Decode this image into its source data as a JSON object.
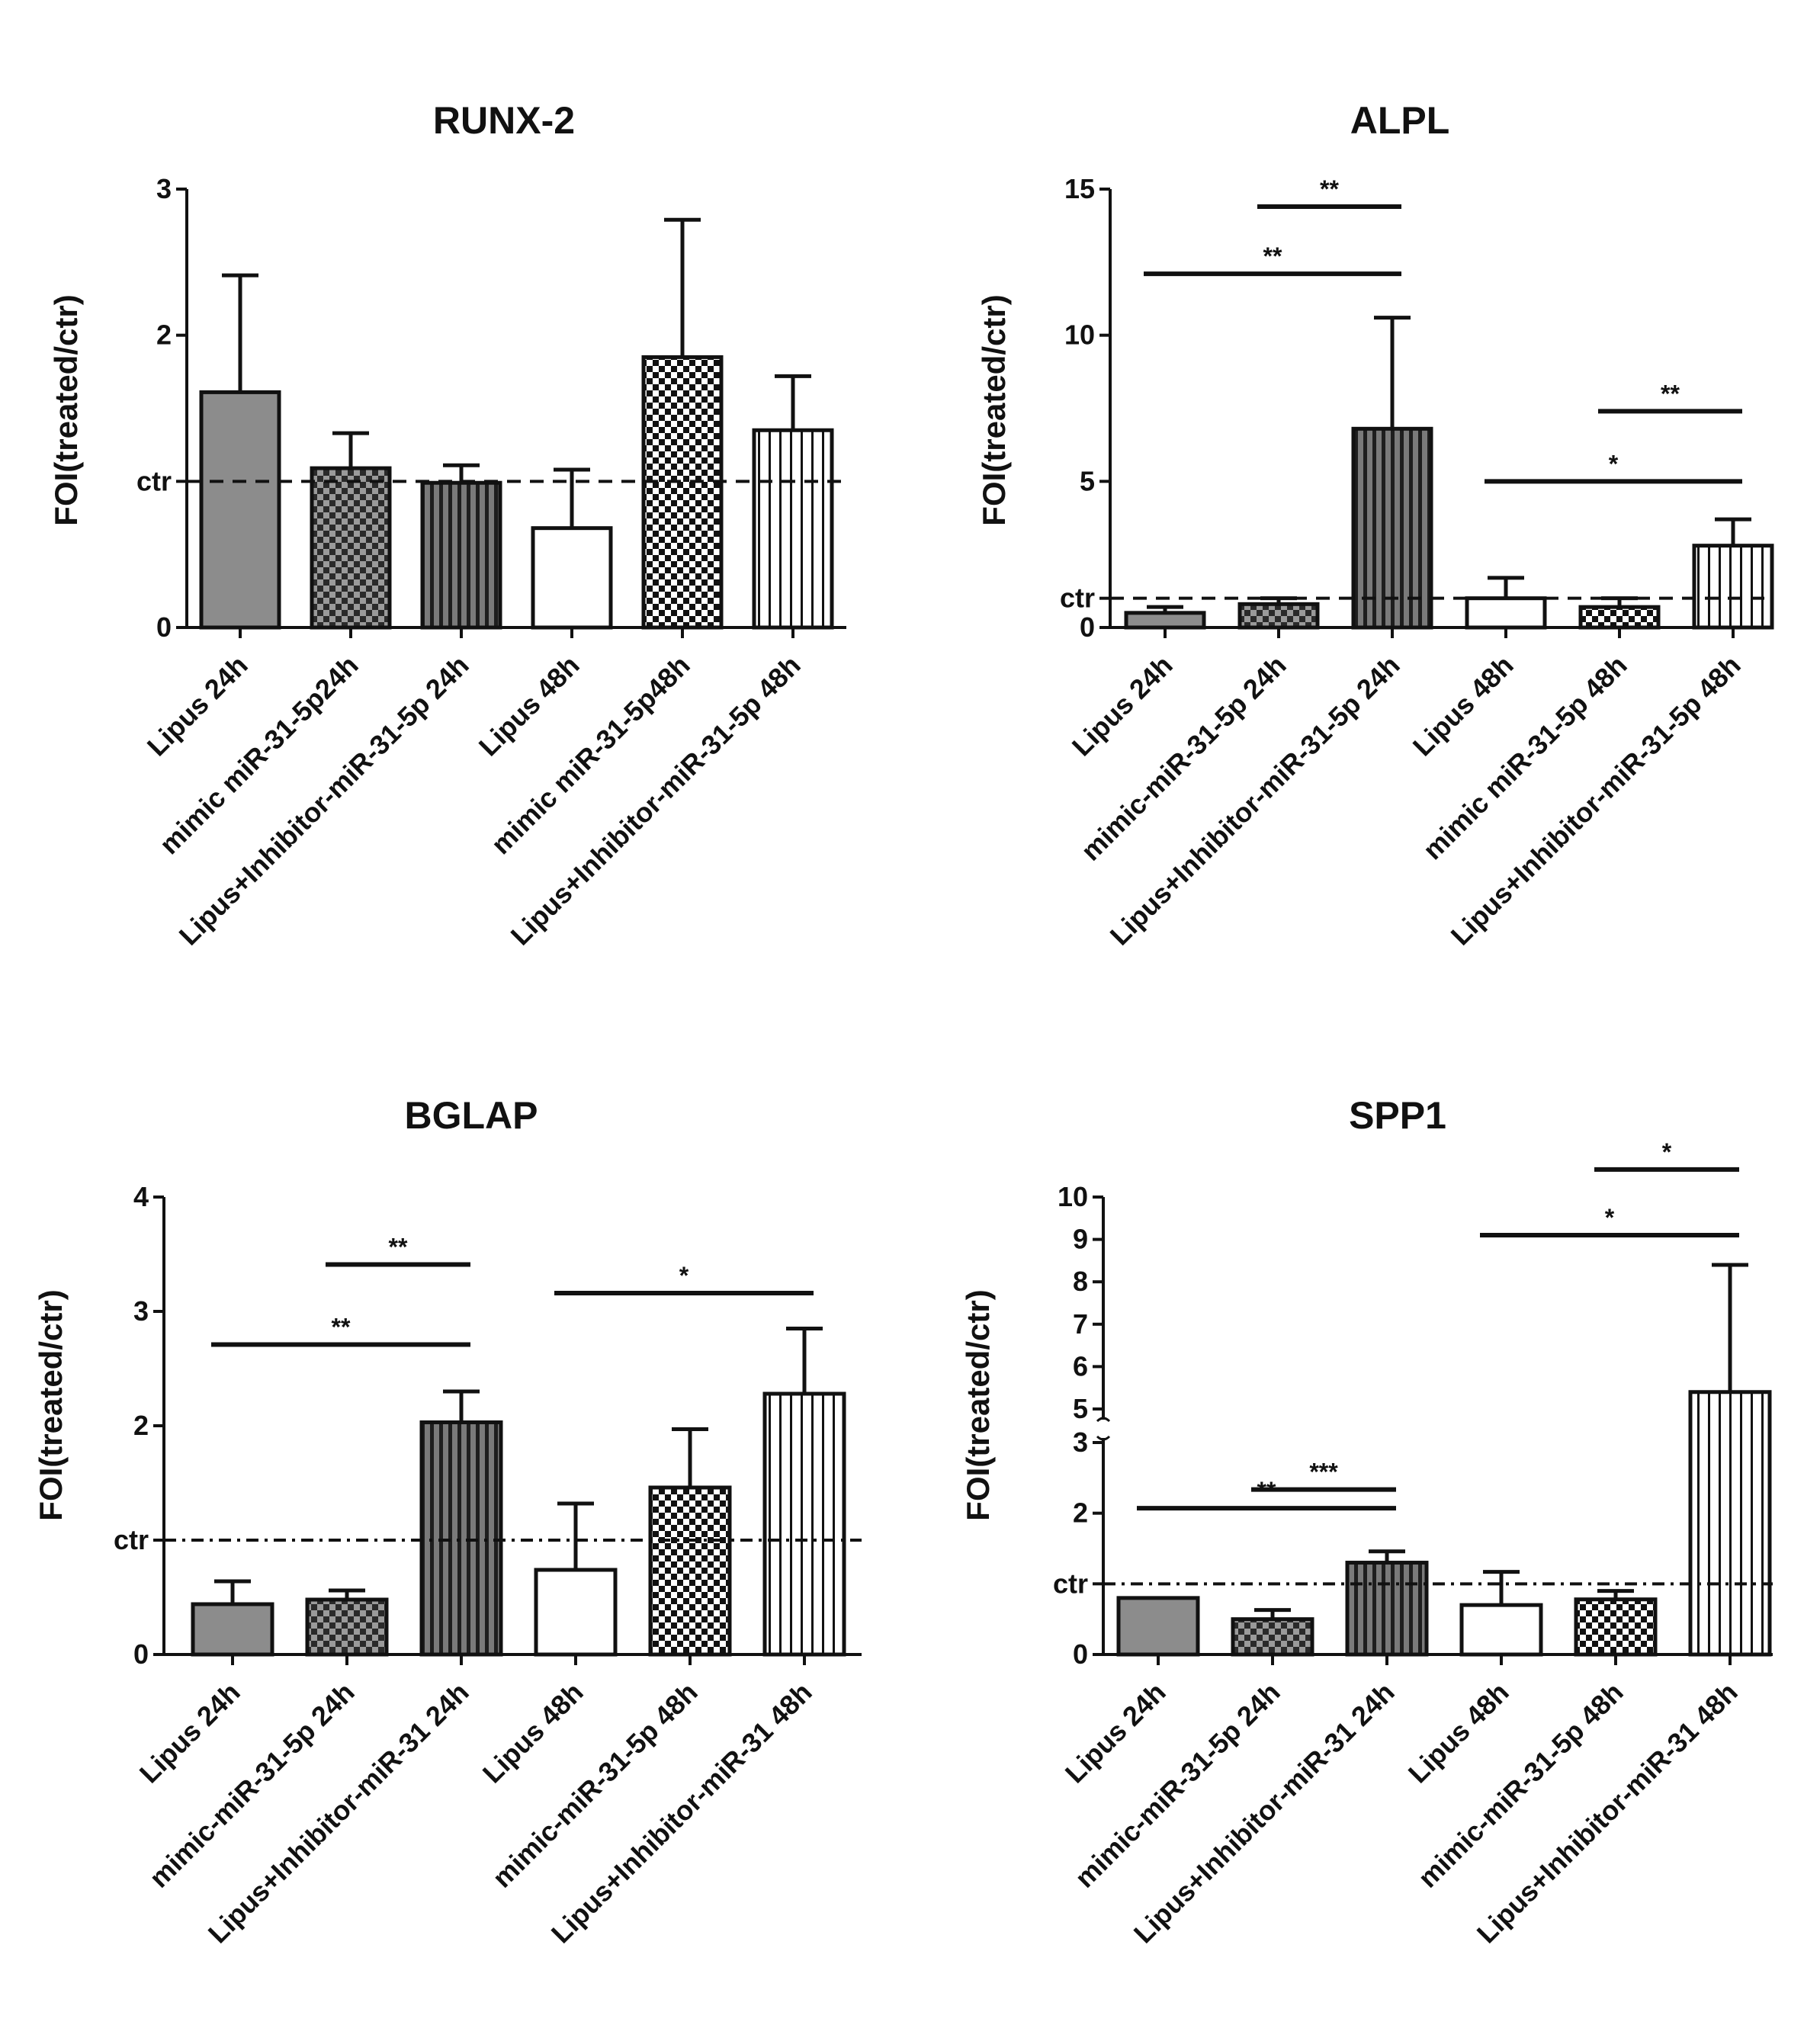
{
  "chart_data": [
    {
      "type": "bar",
      "title": "RUNX-2",
      "ylabel": "FOI(treated/ctr)",
      "ylim": [
        0,
        3
      ],
      "yticks": [
        {
          "value": 0,
          "label": "0"
        },
        {
          "value": 1,
          "label": "ctr"
        },
        {
          "value": 2,
          "label": "2"
        },
        {
          "value": 3,
          "label": "3"
        }
      ],
      "control_line": 1,
      "categories": [
        "Lipus 24h",
        "mimic miR-31-5p24h",
        "Lipus+Inhibitor-miR-31-5p 24h",
        "Lipus 48h",
        "mimic miR-31-5p48h",
        "Lipus+Inhibitor-miR-31-5p 48h"
      ],
      "values": [
        1.61,
        1.09,
        0.99,
        0.68,
        1.85,
        1.35
      ],
      "errors": [
        0.8,
        0.24,
        0.12,
        0.4,
        0.94,
        0.37
      ],
      "patterns": [
        "gray",
        "check",
        "vstripe",
        "white",
        "checkfine",
        "vlines"
      ],
      "significance": []
    },
    {
      "type": "bar",
      "title": "ALPL",
      "ylabel": "FOI(treated/ctr)",
      "ylim": [
        0,
        15
      ],
      "yticks": [
        {
          "value": 0,
          "label": "0"
        },
        {
          "value": 1,
          "label": "ctr"
        },
        {
          "value": 5,
          "label": "5"
        },
        {
          "value": 10,
          "label": "10"
        },
        {
          "value": 15,
          "label": "15"
        }
      ],
      "control_line": 1,
      "categories": [
        "Lipus 24h",
        "mimic-miR-31-5p 24h",
        "Lipus+Inhibitor-miR-31-5p 24h",
        "Lipus 48h",
        "mimic miR-31-5p 48h",
        "Lipus+Inhibitor-miR-31-5p 48h"
      ],
      "values": [
        0.5,
        0.8,
        6.8,
        1.0,
        0.7,
        2.8
      ],
      "errors": [
        0.2,
        0.2,
        3.8,
        0.7,
        0.3,
        0.9
      ],
      "patterns": [
        "gray",
        "check",
        "vstripe",
        "white",
        "checkfine",
        "vlines"
      ],
      "significance": [
        {
          "from": 0,
          "to": 2,
          "y": 12.1,
          "label": "**"
        },
        {
          "from": 1,
          "to": 2,
          "y": 14.4,
          "label": "**"
        },
        {
          "from": 3,
          "to": 5,
          "y": 5.0,
          "label": "*"
        },
        {
          "from": 4,
          "to": 5,
          "y": 7.4,
          "label": "**"
        }
      ]
    },
    {
      "type": "bar",
      "title": "BGLAP",
      "ylabel": "FOI(treated/ctr)",
      "ylim": [
        0,
        4
      ],
      "yticks": [
        {
          "value": 0,
          "label": "0"
        },
        {
          "value": 1,
          "label": "ctr"
        },
        {
          "value": 2,
          "label": "2"
        },
        {
          "value": 3,
          "label": "3"
        },
        {
          "value": 4,
          "label": "4"
        }
      ],
      "control_line": 1,
      "categories": [
        "Lipus 24h",
        "mimic-miR-31-5p 24h",
        "Lipus+Inhibitor-miR-31 24h",
        "Lipus 48h",
        "mimic-miR-31-5p 48h",
        "Lipus+Inhibitor-miR-31 48h"
      ],
      "values": [
        0.44,
        0.48,
        2.03,
        0.74,
        1.46,
        2.28
      ],
      "errors": [
        0.2,
        0.08,
        0.27,
        0.58,
        0.51,
        0.57
      ],
      "patterns": [
        "gray",
        "check",
        "vstripe",
        "white",
        "checkfine",
        "vlines"
      ],
      "significance": [
        {
          "from": 0,
          "to": 2,
          "y": 2.71,
          "label": "**"
        },
        {
          "from": 1,
          "to": 2,
          "y": 3.41,
          "label": "**"
        },
        {
          "from": 3,
          "to": 5,
          "y": 3.16,
          "label": "*"
        }
      ]
    },
    {
      "type": "bar",
      "title": "SPP1",
      "ylabel": "FOI(treated/ctr)",
      "ylim": [
        0,
        10
      ],
      "axis_break": {
        "lower": [
          0,
          3
        ],
        "upper": [
          5,
          10
        ]
      },
      "yticks": [
        {
          "value": 0,
          "label": "0"
        },
        {
          "value": 1,
          "label": "ctr"
        },
        {
          "value": 2,
          "label": "2"
        },
        {
          "value": 3,
          "label": "3"
        },
        {
          "value": 5,
          "label": "5"
        },
        {
          "value": 6,
          "label": "6"
        },
        {
          "value": 7,
          "label": "7"
        },
        {
          "value": 8,
          "label": "8"
        },
        {
          "value": 9,
          "label": "9"
        },
        {
          "value": 10,
          "label": "10"
        }
      ],
      "control_line": 1,
      "categories": [
        "Lipus 24h",
        "mimic-miR-31-5p 24h",
        "Lipus+Inhibitor-miR-31 24h",
        "Lipus 48h",
        "mimic-miR-31-5p 48h",
        "Lipus+Inhibitor-miR-31 48h"
      ],
      "values": [
        0.8,
        0.5,
        1.3,
        0.7,
        0.78,
        5.4
      ],
      "errors": [
        0.0,
        0.13,
        0.16,
        0.47,
        0.12,
        3.0
      ],
      "patterns": [
        "gray",
        "check",
        "vstripe",
        "white",
        "checkfine",
        "vlines"
      ],
      "significance": [
        {
          "from": 0,
          "to": 2,
          "y": 2.07,
          "label": "**"
        },
        {
          "from": 1,
          "to": 2,
          "y": 3.1,
          "label": "***"
        },
        {
          "from": 3,
          "to": 5,
          "y": 9.1,
          "label": "*"
        },
        {
          "from": 4,
          "to": 5,
          "y": 10.65,
          "label": "*"
        }
      ]
    }
  ]
}
